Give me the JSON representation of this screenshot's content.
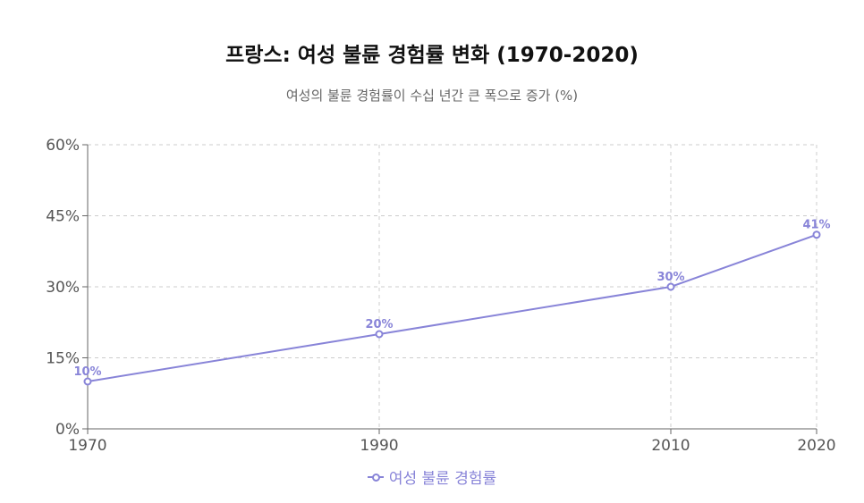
{
  "title": "프랑스: 여성 불륜 경험률 변화 (1970-2020)",
  "subtitle": "여성의 불륜 경험률이 수십 년간 큰 폭으로 증가 (%)",
  "colors": {
    "series": "#8884d8",
    "grid": "#cccccc",
    "axis": "#666666"
  },
  "chart_data": {
    "type": "line",
    "title": "프랑스: 여성 불륜 경험률 변화 (1970-2020)",
    "subtitle": "여성의 불륜 경험률이 수십 년간 큰 폭으로 증가 (%)",
    "x": [
      1970,
      1990,
      2010,
      2020
    ],
    "x_tick_labels": [
      "1970",
      "1990",
      "2010",
      "2020"
    ],
    "series": [
      {
        "name": "여성 불륜 경험률",
        "values": [
          10,
          20,
          30,
          41
        ],
        "data_labels": [
          "10%",
          "20%",
          "30%",
          "41%"
        ]
      }
    ],
    "ylim": [
      0,
      60
    ],
    "y_ticks": [
      0,
      15,
      30,
      45,
      60
    ],
    "y_tick_labels": [
      "0%",
      "15%",
      "30%",
      "45%",
      "60%"
    ],
    "xlabel": "",
    "ylabel": "",
    "grid": true,
    "legend_position": "bottom"
  }
}
